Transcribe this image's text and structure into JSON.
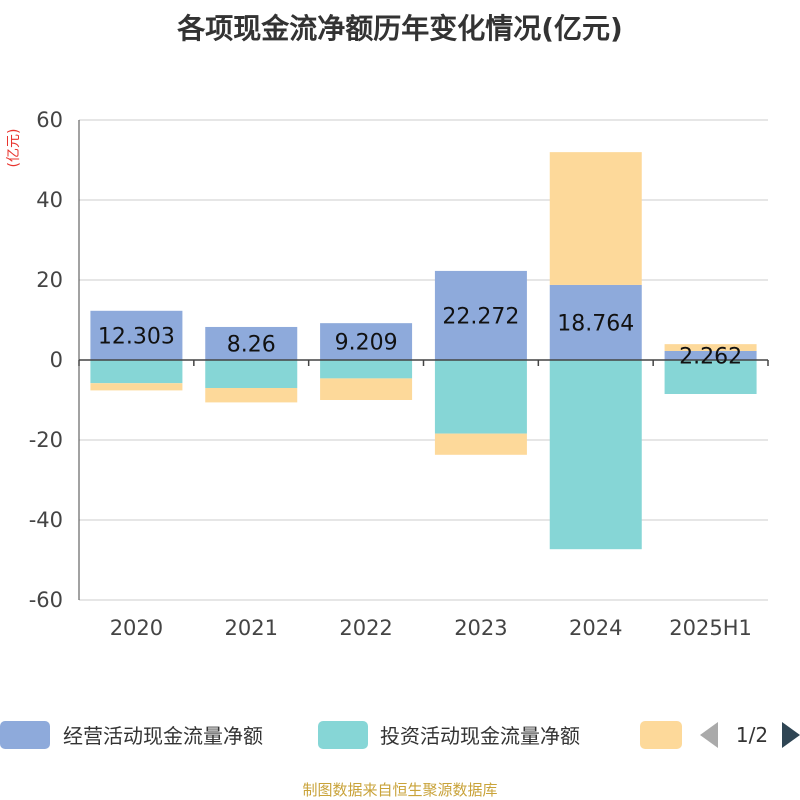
{
  "chart_data": {
    "type": "bar",
    "stacked": true,
    "title": "各项现金流净额历年变化情况(亿元)",
    "y_unit": "(亿元)",
    "categories": [
      "2020",
      "2021",
      "2022",
      "2023",
      "2024",
      "2025H1"
    ],
    "ylim": [
      -60,
      60
    ],
    "yticks": [
      60,
      40,
      20,
      0,
      -20,
      -40,
      -60
    ],
    "grid": true,
    "series": [
      {
        "name": "经营活动现金流量净额",
        "color": "#8eaadb",
        "values": [
          12.303,
          8.26,
          9.209,
          22.272,
          18.764,
          2.262
        ],
        "labels": [
          "12.303",
          "8.26",
          "9.209",
          "22.272",
          "18.764",
          "2.262"
        ]
      },
      {
        "name": "投资活动现金流量净额",
        "color": "#86d6d6",
        "values": [
          -5.8,
          -7.0,
          -4.6,
          -18.4,
          -47.3,
          -8.5
        ]
      },
      {
        "name": "",
        "color": "#fdd99a",
        "values": [
          -1.8,
          -3.6,
          -5.4,
          -5.3,
          33.2,
          1.7
        ]
      }
    ],
    "legend_position": "bottom"
  },
  "pager": {
    "text": "1/2"
  },
  "source": "制图数据来自恒生聚源数据库"
}
